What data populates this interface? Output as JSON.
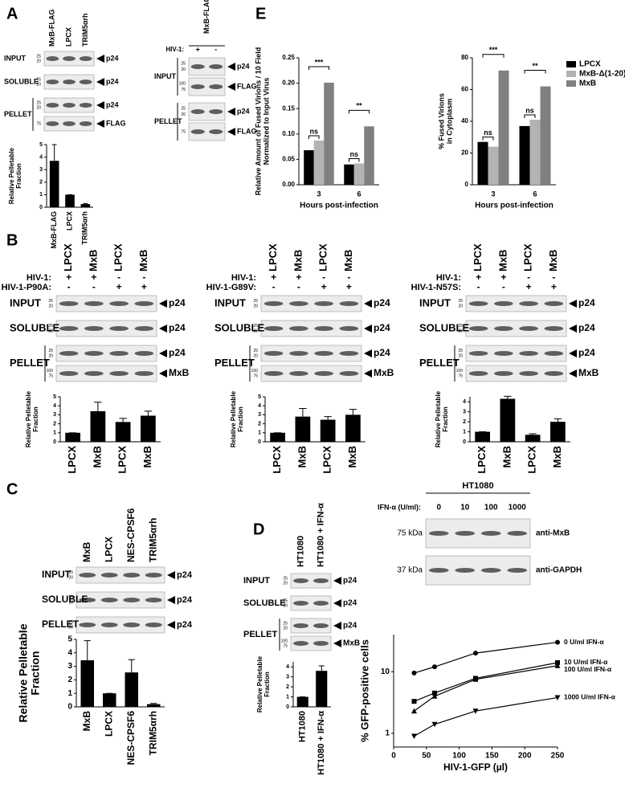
{
  "panel_labels": [
    "A",
    "B",
    "C",
    "D",
    "E"
  ],
  "blots": [
    {
      "lanes": [
        "MxB-FLAG",
        "LPCX",
        "TRIM5αrh"
      ],
      "strips": [
        {
          "row": "INPUT",
          "mw": [
            "25",
            "20"
          ],
          "band": "p24"
        },
        {
          "row": "SOLUBLE",
          "mw": [
            "25",
            "20"
          ],
          "band": "p24"
        },
        {
          "row": "PELLET",
          "mw": [
            "25",
            "20"
          ],
          "band": "p24"
        },
        {
          "mw": [
            "75"
          ],
          "band": "FLAG"
        }
      ]
    },
    {
      "header": "MxB-FLAG",
      "conditions": [
        {
          "label": "HIV-1:",
          "marks": [
            "+",
            "-"
          ]
        }
      ],
      "strips": [
        {
          "row": "INPUT",
          "mw": [
            "25",
            "20"
          ],
          "band": "p24"
        },
        {
          "mw": [
            "100",
            "75"
          ],
          "band": "FLAG"
        },
        {
          "row": "PELLET",
          "mw": [
            "25",
            "20"
          ],
          "band": "p24"
        },
        {
          "mw": [
            "75"
          ],
          "band": "FLAG"
        }
      ]
    },
    {
      "lanes": [
        "LPCX",
        "MxB",
        "LPCX",
        "MxB"
      ],
      "conditions": [
        {
          "label": "HIV-1:",
          "marks": [
            "+",
            "+",
            "-",
            "-"
          ]
        },
        {
          "label": "HIV-1-P90A:",
          "marks": [
            "-",
            "-",
            "+",
            "+"
          ]
        }
      ],
      "strips": [
        {
          "row": "INPUT",
          "mw": [
            "25",
            "20"
          ],
          "band": "p24"
        },
        {
          "row": "SOLUBLE",
          "mw": [
            "25",
            "20"
          ],
          "band": "p24"
        },
        {
          "row": "PELLET",
          "mw": [
            "25",
            "20"
          ],
          "band": "p24"
        },
        {
          "mw": [
            "100",
            "75"
          ],
          "band": "MxB"
        }
      ]
    },
    {
      "lanes": [
        "LPCX",
        "MxB",
        "LPCX",
        "MxB"
      ],
      "conditions": [
        {
          "label": "HIV-1:",
          "marks": [
            "+",
            "+",
            "-",
            "-"
          ]
        },
        {
          "label": "HIV-1-G89V:",
          "marks": [
            "-",
            "-",
            "+",
            "+"
          ]
        }
      ],
      "strips": [
        {
          "row": "INPUT",
          "mw": [
            "25",
            "20"
          ],
          "band": "p24"
        },
        {
          "row": "SOLUBLE",
          "mw": [
            "25",
            "20"
          ],
          "band": "p24"
        },
        {
          "row": "PELLET",
          "mw": [
            "25",
            "20"
          ],
          "band": "p24"
        },
        {
          "mw": [
            "100",
            "75"
          ],
          "band": "MxB"
        }
      ]
    },
    {
      "lanes": [
        "LPCX",
        "MxB",
        "LPCX",
        "MxB"
      ],
      "conditions": [
        {
          "label": "HIV-1:",
          "marks": [
            "+",
            "+",
            "-",
            "-"
          ]
        },
        {
          "label": "HIV-1-N57S:",
          "marks": [
            "-",
            "-",
            "+",
            "+"
          ]
        }
      ],
      "strips": [
        {
          "row": "INPUT",
          "mw": [
            "25",
            "20"
          ],
          "band": "p24"
        },
        {
          "row": "SOLUBLE",
          "mw": [
            "25",
            "20"
          ],
          "band": "p24"
        },
        {
          "row": "PELLET",
          "mw": [
            "25",
            "20"
          ],
          "band": "p24"
        },
        {
          "mw": [
            "100",
            "75"
          ],
          "band": "MxB"
        }
      ]
    },
    {
      "lanes": [
        "MxB",
        "LPCX",
        "NES-CPSF6",
        "TRIM5αrh"
      ],
      "strips": [
        {
          "row": "INPUT",
          "mw": [
            "25",
            "20"
          ],
          "band": "p24"
        },
        {
          "row": "SOLUBLE",
          "mw": [
            "25",
            "20"
          ],
          "band": "p24"
        },
        {
          "row": "PELLET",
          "mw": [
            "25",
            "20"
          ],
          "band": "p24"
        }
      ]
    },
    {
      "lanes": [
        "HT1080",
        "HT1080 + IFN-α"
      ],
      "strips": [
        {
          "row": "INPUT",
          "mw": [
            "25",
            "20"
          ],
          "band": "p24"
        },
        {
          "row": "SOLUBLE",
          "mw": [
            "25",
            "20"
          ],
          "band": "p24"
        },
        {
          "row": "PELLET",
          "mw": [
            "25",
            "20"
          ],
          "band": "p24"
        },
        {
          "mw": [
            "100",
            "75"
          ],
          "band": "MxB"
        }
      ]
    },
    {
      "header": "HT1080",
      "conditions": [
        {
          "label": "IFN-α (U/ml):",
          "marks": [
            "0",
            "10",
            "100",
            "1000"
          ]
        }
      ],
      "strips": [
        {
          "mw": [
            "75 kDa"
          ],
          "band": "anti-MxB"
        },
        {
          "mw": [
            "37 kDa"
          ],
          "band": "anti-GAPDH"
        }
      ]
    }
  ],
  "chart_data": [
    {
      "type": "bar",
      "ylabel": [
        "Relative Pelletable",
        "Fraction"
      ],
      "categories": [
        "MxB-FLAG",
        "LPCX",
        "TRIM5αrh"
      ],
      "values": [
        3.7,
        1,
        0.25
      ],
      "errors": [
        1.3,
        0,
        0.05
      ],
      "color": "#000000",
      "ylim": [
        0,
        5
      ],
      "yticks": [
        0,
        1,
        2,
        3,
        4,
        5
      ]
    },
    {
      "type": "bar",
      "ylabel": [
        "Relative Amount of Fused Virions / 10 Field",
        "Normalized to Input Virus"
      ],
      "xlabel": "Hours post-infection",
      "categories": [
        "3",
        "6"
      ],
      "series": [
        {
          "name": "LPCX",
          "color": "#000000",
          "values": [
            0.068,
            0.04
          ]
        },
        {
          "name": "MxB-Δ(1-20)",
          "color": "#b3b3b3",
          "values": [
            0.087,
            0.042
          ]
        },
        {
          "name": "MxB",
          "color": "#808080",
          "values": [
            0.201,
            0.115
          ]
        }
      ],
      "ylim": [
        0,
        0.25
      ],
      "yticks": [
        {
          "value": 0,
          "label": "0.00"
        },
        0.05,
        {
          "value": 0.1,
          "label": "0.10"
        },
        0.15,
        {
          "value": 0.2,
          "label": "0.20"
        },
        0.25
      ],
      "annotations": [
        "***",
        "ns",
        "**",
        "ns"
      ]
    },
    {
      "type": "bar",
      "ylabel": [
        "% Fused Virions",
        "in Cytoplasm"
      ],
      "xlabel": "Hours post-infection",
      "categories": [
        "3",
        "6"
      ],
      "series": [
        {
          "name": "LPCX",
          "color": "#000000",
          "values": [
            27,
            37
          ]
        },
        {
          "name": "MxB-Δ(1-20)",
          "color": "#b3b3b3",
          "values": [
            24,
            41
          ]
        },
        {
          "name": "MxB",
          "color": "#808080",
          "values": [
            72,
            62
          ]
        }
      ],
      "ylim": [
        0,
        80
      ],
      "yticks": [
        0,
        20,
        40,
        60,
        80
      ],
      "annotations": [
        "***",
        "ns",
        "**",
        "ns"
      ],
      "legend": "right"
    },
    {
      "type": "bar",
      "ylabel": [
        "Relative Pelletable",
        "Fraction"
      ],
      "categories": [
        "LPCX",
        "MxB",
        "LPCX",
        "MxB"
      ],
      "values": [
        1,
        3.4,
        2.2,
        2.9
      ],
      "errors": [
        0,
        1,
        0.4,
        0.5
      ],
      "color": "#000000",
      "ylim": [
        0,
        5
      ],
      "yticks": [
        0,
        1,
        2,
        3,
        4,
        5
      ]
    },
    {
      "type": "bar",
      "ylabel": [
        "Relative Pelletable",
        "Fraction"
      ],
      "categories": [
        "LPCX",
        "MxB",
        "LPCX",
        "MxB"
      ],
      "values": [
        1,
        2.8,
        2.45,
        3.0
      ],
      "errors": [
        0,
        0.9,
        0.35,
        0.6
      ],
      "color": "#000000",
      "ylim": [
        0,
        5
      ],
      "yticks": [
        0,
        1,
        2,
        3,
        4,
        5
      ]
    },
    {
      "type": "bar",
      "ylabel": [
        "Relative Pelletable",
        "Fraction"
      ],
      "categories": [
        "LPCX",
        "MxB",
        "LPCX",
        "MxB"
      ],
      "values": [
        1,
        4.3,
        0.7,
        2.0
      ],
      "errors": [
        0,
        0.25,
        0.1,
        0.3
      ],
      "color": "#000000",
      "ylim": [
        0,
        4.5
      ],
      "yticks": [
        0,
        1,
        2,
        3,
        4
      ]
    },
    {
      "type": "bar",
      "ylabel": [
        "Relative Pelletable",
        "Fraction"
      ],
      "categories": [
        "MxB",
        "LPCX",
        "NES-CPSF6",
        "TRIM5αrh"
      ],
      "values": [
        3.45,
        1,
        2.55,
        0.2
      ],
      "errors": [
        1.45,
        0,
        0.95,
        0.05
      ],
      "color": "#000000",
      "ylim": [
        0,
        5
      ],
      "yticks": [
        0,
        1,
        2,
        3,
        4,
        5
      ]
    },
    {
      "type": "bar",
      "ylabel": [
        "Relative Pelletable",
        "Fraction"
      ],
      "categories": [
        "HT1080",
        "HT1080 + IFN-α"
      ],
      "values": [
        1,
        3.6
      ],
      "errors": [
        0,
        0.5
      ],
      "color": "#000000",
      "ylim": [
        0,
        4.5
      ],
      "yticks": [
        0,
        1,
        2,
        3,
        4
      ]
    },
    {
      "type": "line",
      "xlabel": "HIV-1-GFP (µl)",
      "ylabel": [
        "% GFP-positive cells"
      ],
      "x": [
        31.25,
        62.5,
        125,
        250
      ],
      "series": [
        {
          "name": "0 U/ml IFN-α",
          "color": "#000000",
          "marker": "circle",
          "values": [
            9.5,
            12,
            20,
            30
          ]
        },
        {
          "name": "10 U/ml IFN-α",
          "color": "#000000",
          "marker": "square",
          "values": [
            3.3,
            4.5,
            7.8,
            14
          ]
        },
        {
          "name": "100 U/ml IFN-α",
          "color": "#000000",
          "marker": "triangle-up",
          "values": [
            2.3,
            4,
            7.5,
            12.5
          ]
        },
        {
          "name": "1000 U/ml IFN-α",
          "color": "#000000",
          "marker": "triangle-down",
          "values": [
            0.9,
            1.4,
            2.3,
            3.8
          ]
        }
      ],
      "xlim": [
        0,
        250
      ],
      "xticks": [
        0,
        50,
        100,
        150,
        200,
        250
      ],
      "ylim": [
        0.6,
        40
      ],
      "yticks": [
        1,
        10
      ],
      "ylog": true
    }
  ]
}
